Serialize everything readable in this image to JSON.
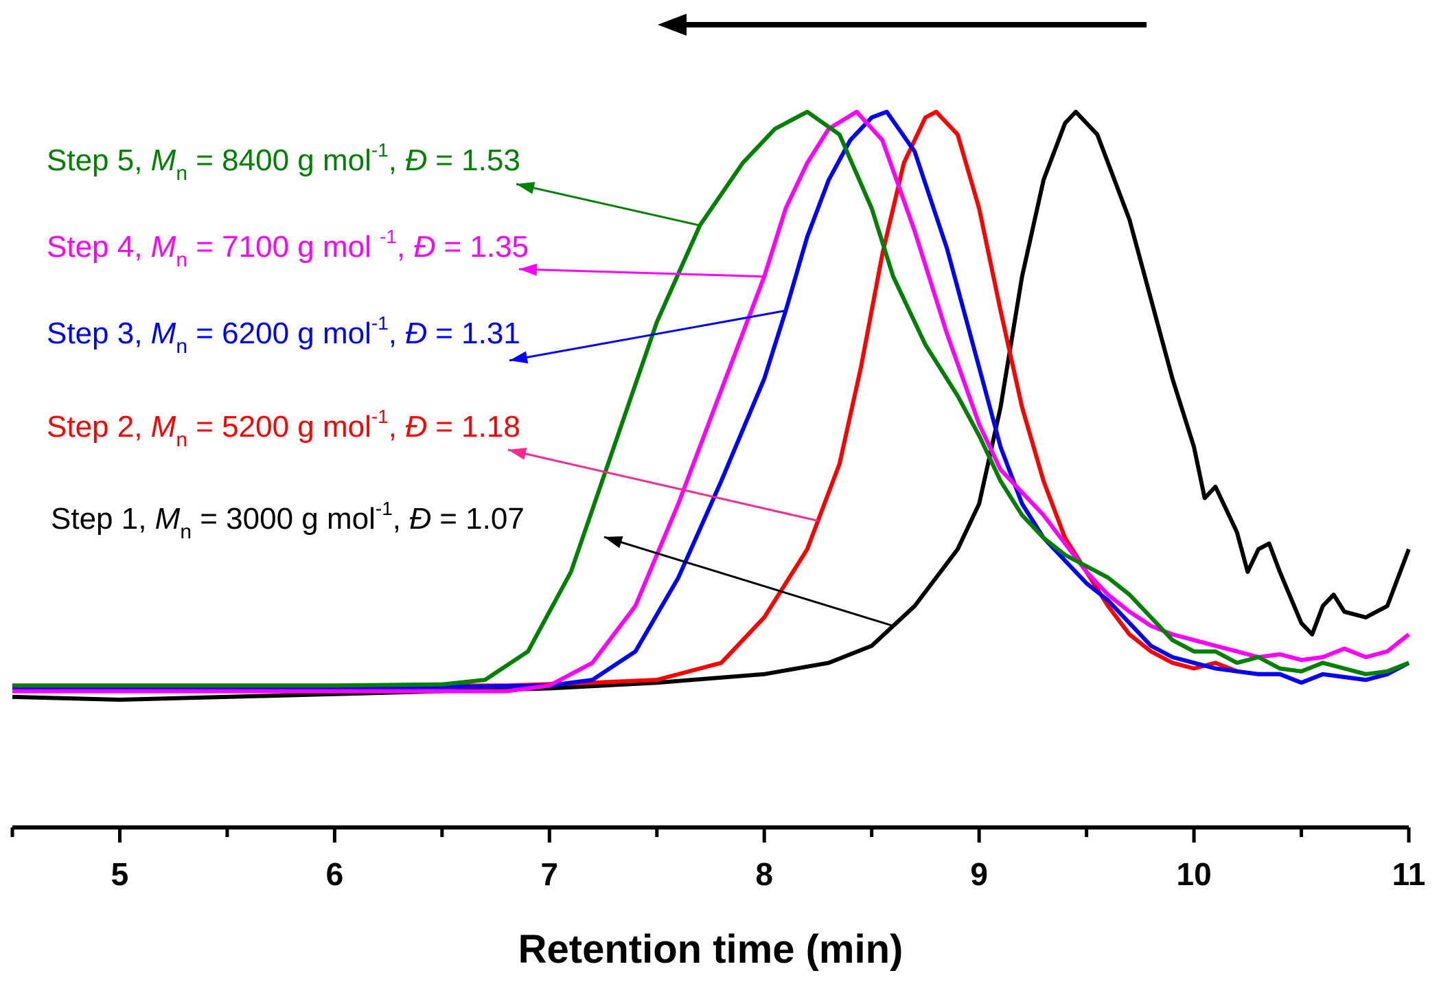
{
  "chart_data": {
    "type": "line",
    "title": "",
    "xlabel": "Retention time (min)",
    "ylabel": "",
    "xlim": [
      4.5,
      11
    ],
    "ylim": [
      0,
      1.1
    ],
    "xticks": [
      5,
      6,
      7,
      8,
      9,
      10,
      11
    ],
    "xtick_labels": [
      "5",
      "6",
      "7",
      "8",
      "9",
      "10",
      "11"
    ],
    "grid": false,
    "arrow_direction": "right-to-left",
    "series": [
      {
        "name": "Step 1",
        "color": "#000000",
        "label_parts": {
          "step": "Step 1, ",
          "mn": "M",
          "mn_sub": "n",
          "mn_value": " = 3000 g mol",
          "mn_exp": "-1",
          "sep": ", ",
          "d": "Đ",
          "d_value": " = 1.07"
        },
        "points": [
          [
            4.5,
            0.04
          ],
          [
            5,
            0.035
          ],
          [
            5.5,
            0.04
          ],
          [
            6,
            0.045
          ],
          [
            6.5,
            0.05
          ],
          [
            7,
            0.055
          ],
          [
            7.5,
            0.065
          ],
          [
            8,
            0.08
          ],
          [
            8.3,
            0.1
          ],
          [
            8.5,
            0.13
          ],
          [
            8.7,
            0.2
          ],
          [
            8.9,
            0.3
          ],
          [
            9.0,
            0.38
          ],
          [
            9.1,
            0.55
          ],
          [
            9.2,
            0.78
          ],
          [
            9.3,
            0.95
          ],
          [
            9.4,
            1.05
          ],
          [
            9.45,
            1.07
          ],
          [
            9.55,
            1.03
          ],
          [
            9.7,
            0.88
          ],
          [
            9.8,
            0.74
          ],
          [
            9.9,
            0.6
          ],
          [
            10.0,
            0.48
          ],
          [
            10.05,
            0.39
          ],
          [
            10.1,
            0.41
          ],
          [
            10.2,
            0.33
          ],
          [
            10.25,
            0.26
          ],
          [
            10.3,
            0.3
          ],
          [
            10.35,
            0.31
          ],
          [
            10.4,
            0.26
          ],
          [
            10.5,
            0.17
          ],
          [
            10.55,
            0.15
          ],
          [
            10.6,
            0.2
          ],
          [
            10.65,
            0.22
          ],
          [
            10.7,
            0.19
          ],
          [
            10.8,
            0.18
          ],
          [
            10.9,
            0.2
          ],
          [
            11.0,
            0.3
          ]
        ]
      },
      {
        "name": "Step 2",
        "color": "#ff0000",
        "label_parts": {
          "step": "Step 2, ",
          "mn": "M",
          "mn_sub": "n",
          "mn_value": " = 5200 g mol",
          "mn_exp": "-1",
          "sep": ", ",
          "d": "Đ",
          "d_value": " = 1.18"
        },
        "points": [
          [
            4.5,
            0.06
          ],
          [
            5,
            0.06
          ],
          [
            6,
            0.06
          ],
          [
            6.8,
            0.06
          ],
          [
            7.2,
            0.065
          ],
          [
            7.5,
            0.07
          ],
          [
            7.8,
            0.1
          ],
          [
            8.0,
            0.18
          ],
          [
            8.2,
            0.3
          ],
          [
            8.35,
            0.45
          ],
          [
            8.45,
            0.62
          ],
          [
            8.55,
            0.82
          ],
          [
            8.65,
            0.98
          ],
          [
            8.75,
            1.06
          ],
          [
            8.8,
            1.07
          ],
          [
            8.9,
            1.03
          ],
          [
            9.0,
            0.9
          ],
          [
            9.1,
            0.72
          ],
          [
            9.2,
            0.55
          ],
          [
            9.3,
            0.42
          ],
          [
            9.4,
            0.32
          ],
          [
            9.5,
            0.26
          ],
          [
            9.6,
            0.2
          ],
          [
            9.7,
            0.15
          ],
          [
            9.8,
            0.12
          ],
          [
            9.9,
            0.1
          ],
          [
            10.0,
            0.09
          ],
          [
            10.1,
            0.1
          ],
          [
            10.2,
            0.085
          ],
          [
            10.3,
            0.08
          ],
          [
            10.4,
            0.08
          ],
          [
            10.5,
            0.065
          ],
          [
            10.6,
            0.08
          ],
          [
            10.7,
            0.075
          ],
          [
            10.8,
            0.07
          ],
          [
            10.9,
            0.08
          ],
          [
            11.0,
            0.1
          ]
        ]
      },
      {
        "name": "Step 3",
        "color": "#0000ff",
        "label_parts": {
          "step": "Step 3, ",
          "mn": "M",
          "mn_sub": "n",
          "mn_value": " = 6200 g mol",
          "mn_exp": "-1",
          "sep": ", ",
          "d": "Đ",
          "d_value": " = 1.31"
        },
        "points": [
          [
            4.5,
            0.055
          ],
          [
            5,
            0.055
          ],
          [
            6,
            0.055
          ],
          [
            7,
            0.06
          ],
          [
            7.2,
            0.07
          ],
          [
            7.4,
            0.12
          ],
          [
            7.6,
            0.25
          ],
          [
            7.8,
            0.42
          ],
          [
            8.0,
            0.6
          ],
          [
            8.1,
            0.72
          ],
          [
            8.2,
            0.85
          ],
          [
            8.3,
            0.95
          ],
          [
            8.4,
            1.02
          ],
          [
            8.5,
            1.06
          ],
          [
            8.57,
            1.07
          ],
          [
            8.7,
            1.0
          ],
          [
            8.85,
            0.83
          ],
          [
            9.0,
            0.62
          ],
          [
            9.1,
            0.48
          ],
          [
            9.2,
            0.38
          ],
          [
            9.3,
            0.32
          ],
          [
            9.4,
            0.28
          ],
          [
            9.5,
            0.24
          ],
          [
            9.6,
            0.21
          ],
          [
            9.7,
            0.17
          ],
          [
            9.8,
            0.13
          ],
          [
            9.9,
            0.11
          ],
          [
            10.0,
            0.1
          ],
          [
            10.1,
            0.09
          ],
          [
            10.2,
            0.085
          ],
          [
            10.3,
            0.08
          ],
          [
            10.4,
            0.08
          ],
          [
            10.5,
            0.065
          ],
          [
            10.6,
            0.08
          ],
          [
            10.7,
            0.075
          ],
          [
            10.8,
            0.07
          ],
          [
            10.9,
            0.08
          ],
          [
            11.0,
            0.1
          ]
        ]
      },
      {
        "name": "Step 4",
        "color": "#ff00ff",
        "label_parts": {
          "step": "Step 4, ",
          "mn": "M",
          "mn_sub": "n",
          "mn_value": " = 7100 g mol ",
          "mn_exp": "-1",
          "sep": ", ",
          "d": "Đ",
          "d_value": " = 1.35"
        },
        "points": [
          [
            4.5,
            0.05
          ],
          [
            5,
            0.05
          ],
          [
            6,
            0.05
          ],
          [
            6.8,
            0.05
          ],
          [
            7.0,
            0.06
          ],
          [
            7.2,
            0.1
          ],
          [
            7.4,
            0.2
          ],
          [
            7.6,
            0.38
          ],
          [
            7.8,
            0.58
          ],
          [
            8.0,
            0.78
          ],
          [
            8.1,
            0.9
          ],
          [
            8.2,
            0.98
          ],
          [
            8.3,
            1.04
          ],
          [
            8.43,
            1.07
          ],
          [
            8.55,
            1.02
          ],
          [
            8.7,
            0.86
          ],
          [
            8.85,
            0.68
          ],
          [
            9.0,
            0.52
          ],
          [
            9.1,
            0.44
          ],
          [
            9.2,
            0.4
          ],
          [
            9.3,
            0.36
          ],
          [
            9.4,
            0.31
          ],
          [
            9.5,
            0.26
          ],
          [
            9.6,
            0.22
          ],
          [
            9.7,
            0.19
          ],
          [
            9.8,
            0.165
          ],
          [
            9.9,
            0.15
          ],
          [
            10.0,
            0.14
          ],
          [
            10.1,
            0.13
          ],
          [
            10.2,
            0.12
          ],
          [
            10.3,
            0.11
          ],
          [
            10.4,
            0.115
          ],
          [
            10.5,
            0.105
          ],
          [
            10.6,
            0.11
          ],
          [
            10.7,
            0.125
          ],
          [
            10.8,
            0.11
          ],
          [
            10.9,
            0.12
          ],
          [
            11.0,
            0.15
          ]
        ]
      },
      {
        "name": "Step 5",
        "color": "#008000",
        "label_parts": {
          "step": "Step 5, ",
          "mn": "M",
          "mn_sub": "n",
          "mn_value": " = 8400 g mol",
          "mn_exp": "-1",
          "sep": ", ",
          "d": "Đ",
          "d_value": " = 1.53"
        },
        "points": [
          [
            4.5,
            0.06
          ],
          [
            5,
            0.06
          ],
          [
            6,
            0.06
          ],
          [
            6.5,
            0.062
          ],
          [
            6.7,
            0.07
          ],
          [
            6.9,
            0.12
          ],
          [
            7.1,
            0.26
          ],
          [
            7.3,
            0.48
          ],
          [
            7.5,
            0.7
          ],
          [
            7.7,
            0.87
          ],
          [
            7.9,
            0.98
          ],
          [
            8.05,
            1.04
          ],
          [
            8.2,
            1.07
          ],
          [
            8.35,
            1.03
          ],
          [
            8.5,
            0.9
          ],
          [
            8.6,
            0.78
          ],
          [
            8.75,
            0.66
          ],
          [
            8.9,
            0.57
          ],
          [
            9.0,
            0.5
          ],
          [
            9.1,
            0.42
          ],
          [
            9.2,
            0.36
          ],
          [
            9.3,
            0.32
          ],
          [
            9.4,
            0.29
          ],
          [
            9.5,
            0.27
          ],
          [
            9.6,
            0.25
          ],
          [
            9.7,
            0.22
          ],
          [
            9.8,
            0.18
          ],
          [
            9.9,
            0.14
          ],
          [
            10.0,
            0.12
          ],
          [
            10.1,
            0.12
          ],
          [
            10.2,
            0.1
          ],
          [
            10.3,
            0.11
          ],
          [
            10.4,
            0.09
          ],
          [
            10.5,
            0.085
          ],
          [
            10.6,
            0.1
          ],
          [
            10.7,
            0.09
          ],
          [
            10.8,
            0.08
          ],
          [
            10.9,
            0.085
          ],
          [
            11.0,
            0.1
          ]
        ]
      }
    ],
    "annotations": [
      {
        "series": "Step 5",
        "point_x": 7.7
      },
      {
        "series": "Step 4",
        "point_x": 8.0
      },
      {
        "series": "Step 3",
        "point_x": 8.1
      },
      {
        "series": "Step 2",
        "point_x": 8.25
      },
      {
        "series": "Step 1",
        "point_x": 8.6
      }
    ]
  }
}
